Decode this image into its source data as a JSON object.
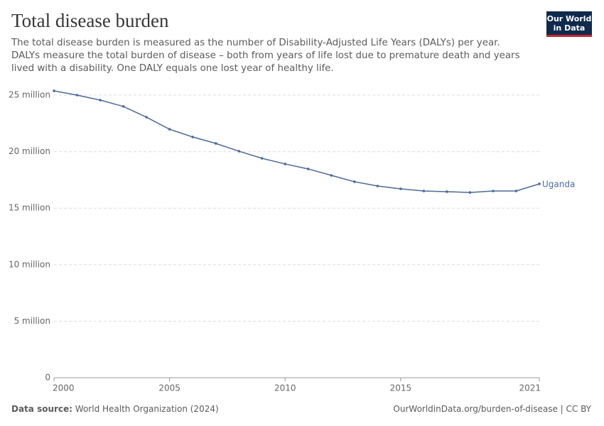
{
  "header": {
    "title": "Total disease burden",
    "subtitle": [
      "The total disease burden is measured as the number of Disability-Adjusted Life Years (DALYs) per year.",
      "DALYs measure the total burden of disease – both from years of life lost due to premature death and years",
      "lived with a disability. One DALY equals one lost year of healthy life."
    ],
    "logo": [
      "Our World",
      "in Data"
    ]
  },
  "chart_data": {
    "type": "line",
    "x": [
      2000,
      2001,
      2002,
      2003,
      2004,
      2005,
      2006,
      2007,
      2008,
      2009,
      2010,
      2011,
      2012,
      2013,
      2014,
      2015,
      2016,
      2017,
      2018,
      2019,
      2020,
      2021
    ],
    "series": [
      {
        "name": "Uganda",
        "color": "#4c6a9c",
        "values": [
          25380000,
          25000000,
          24560000,
          24000000,
          23050000,
          21980000,
          21300000,
          20730000,
          20040000,
          19410000,
          18910000,
          18470000,
          17900000,
          17340000,
          16960000,
          16710000,
          16520000,
          16460000,
          16390000,
          16520000,
          16520000,
          17150000
        ]
      }
    ],
    "xlim": [
      2000,
      2021
    ],
    "xticks": [
      2000,
      2005,
      2010,
      2015,
      2021
    ],
    "ylim": [
      0,
      25000000
    ],
    "yticks": [
      0,
      {
        "value": 5000000,
        "label": "5 million"
      },
      {
        "value": 10000000,
        "label": "10 million"
      },
      {
        "value": 15000000,
        "label": "15 million"
      },
      {
        "value": 20000000,
        "label": "20 million"
      },
      {
        "value": 25000000,
        "label": "25 million"
      }
    ],
    "grid": true
  },
  "footer": {
    "source_label": "Data source:",
    "source": "World Health Organization (2024)",
    "url": "OurWorldinData.org/burden-of-disease | CC BY"
  }
}
